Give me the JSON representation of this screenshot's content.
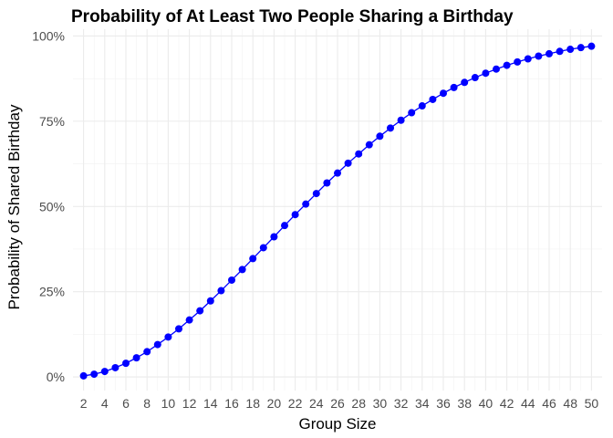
{
  "chart_data": {
    "type": "line",
    "title": "Probability of At Least Two People Sharing a Birthday",
    "xlabel": "Group Size",
    "ylabel": "Probability of Shared Birthday",
    "xlim": [
      1,
      51
    ],
    "ylim": [
      -0.04,
      1.02
    ],
    "x_ticks": [
      2,
      4,
      6,
      8,
      10,
      12,
      14,
      16,
      18,
      20,
      22,
      24,
      26,
      28,
      30,
      32,
      34,
      36,
      38,
      40,
      42,
      44,
      46,
      48,
      50
    ],
    "y_ticks": [
      0,
      0.25,
      0.5,
      0.75,
      1.0
    ],
    "y_tick_labels": [
      "0%",
      "25%",
      "50%",
      "75%",
      "100%"
    ],
    "grid": true,
    "legend": "none",
    "series": [
      {
        "color": "#0000ff",
        "x": [
          2,
          3,
          4,
          5,
          6,
          7,
          8,
          9,
          10,
          11,
          12,
          13,
          14,
          15,
          16,
          17,
          18,
          19,
          20,
          21,
          22,
          23,
          24,
          25,
          26,
          27,
          28,
          29,
          30,
          31,
          32,
          33,
          34,
          35,
          36,
          37,
          38,
          39,
          40,
          41,
          42,
          43,
          44,
          45,
          46,
          47,
          48,
          49,
          50
        ],
        "values": [
          0.003,
          0.008,
          0.016,
          0.027,
          0.04,
          0.056,
          0.074,
          0.095,
          0.117,
          0.141,
          0.167,
          0.194,
          0.223,
          0.253,
          0.284,
          0.315,
          0.347,
          0.379,
          0.411,
          0.444,
          0.476,
          0.507,
          0.538,
          0.569,
          0.598,
          0.627,
          0.654,
          0.681,
          0.706,
          0.73,
          0.753,
          0.775,
          0.795,
          0.814,
          0.832,
          0.849,
          0.864,
          0.878,
          0.891,
          0.903,
          0.914,
          0.924,
          0.933,
          0.941,
          0.948,
          0.955,
          0.961,
          0.966,
          0.97
        ]
      }
    ]
  }
}
